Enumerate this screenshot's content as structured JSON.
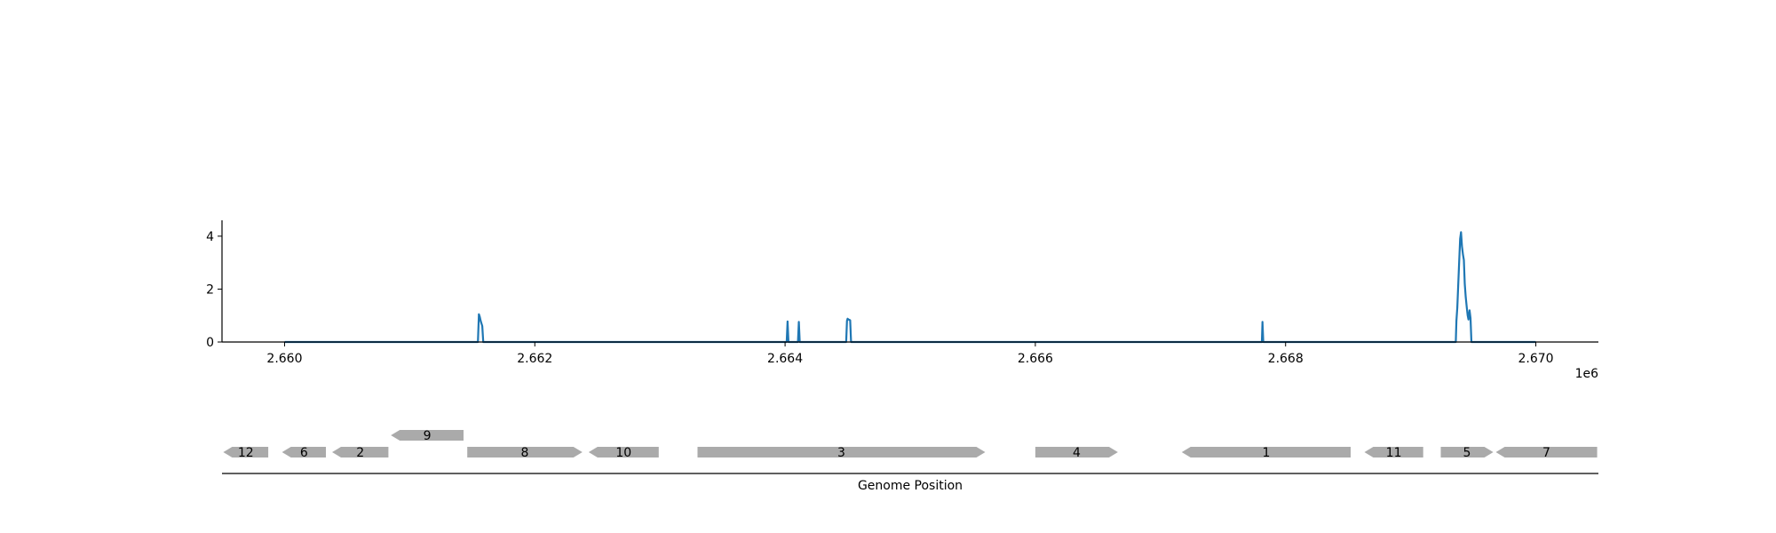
{
  "chart_data": [
    {
      "type": "line",
      "series": [
        {
          "color": "#1f77b4",
          "x": [
            2660000,
            2661545,
            2661553,
            2661560,
            2661567,
            2661574,
            2661580,
            2661588,
            2664013,
            2664020,
            2664027,
            2664103,
            2664110,
            2664117,
            2664488,
            2664495,
            2664500,
            2664507,
            2664513,
            2664520,
            2664527,
            2667810,
            2667815,
            2667822,
            2669360,
            2669365,
            2669372,
            2669380,
            2669388,
            2669395,
            2669402,
            2669410,
            2669418,
            2669425,
            2669432,
            2669440,
            2669448,
            2669455,
            2669462,
            2669470,
            2669478,
            2669485,
            2669492,
            2670000
          ],
          "y": [
            0,
            0,
            1.05,
            0.95,
            0.8,
            0.7,
            0.6,
            0,
            0,
            0.78,
            0,
            0,
            0.76,
            0,
            0,
            0.8,
            0.88,
            0.85,
            0.84,
            0.82,
            0,
            0,
            0.76,
            0,
            0,
            0.8,
            1.3,
            2.2,
            3.1,
            3.9,
            4.15,
            3.6,
            3.3,
            3.1,
            2.2,
            1.7,
            1.3,
            1.0,
            0.85,
            1.2,
            0.9,
            0,
            0,
            0
          ]
        }
      ],
      "xlim": [
        2659500,
        2670500
      ],
      "ylim": [
        0,
        4.6
      ],
      "xticks": [
        2660000,
        2662000,
        2664000,
        2666000,
        2668000,
        2670000
      ],
      "xtick_labels": [
        "2.660",
        "2.662",
        "2.664",
        "2.666",
        "2.668",
        "2.670"
      ],
      "yticks": [
        0,
        2,
        4
      ],
      "ytick_labels": [
        "0",
        "2",
        "4"
      ],
      "x_offset_label": "1e6",
      "grid": false
    },
    {
      "type": "gene-track",
      "xlabel": "Genome Position",
      "genes": [
        {
          "label": "12",
          "start": 2659510,
          "end": 2659870,
          "strand": -1,
          "row": 0
        },
        {
          "label": "6",
          "start": 2659980,
          "end": 2660330,
          "strand": -1,
          "row": 0
        },
        {
          "label": "2",
          "start": 2660380,
          "end": 2660830,
          "strand": -1,
          "row": 0
        },
        {
          "label": "9",
          "start": 2660850,
          "end": 2661430,
          "strand": -1,
          "row": 1
        },
        {
          "label": "8",
          "start": 2661460,
          "end": 2662380,
          "strand": 1,
          "row": 0
        },
        {
          "label": "10",
          "start": 2662430,
          "end": 2662990,
          "strand": -1,
          "row": 0
        },
        {
          "label": "3",
          "start": 2663300,
          "end": 2665600,
          "strand": 1,
          "row": 0
        },
        {
          "label": "4",
          "start": 2666000,
          "end": 2666660,
          "strand": 1,
          "row": 0
        },
        {
          "label": "1",
          "start": 2667170,
          "end": 2668520,
          "strand": -1,
          "row": 0
        },
        {
          "label": "11",
          "start": 2668630,
          "end": 2669100,
          "strand": -1,
          "row": 0
        },
        {
          "label": "5",
          "start": 2669240,
          "end": 2669660,
          "strand": 1,
          "row": 0
        },
        {
          "label": "7",
          "start": 2669680,
          "end": 2670490,
          "strand": -1,
          "row": 0
        }
      ],
      "gene_color": "#aaaaaa"
    }
  ]
}
